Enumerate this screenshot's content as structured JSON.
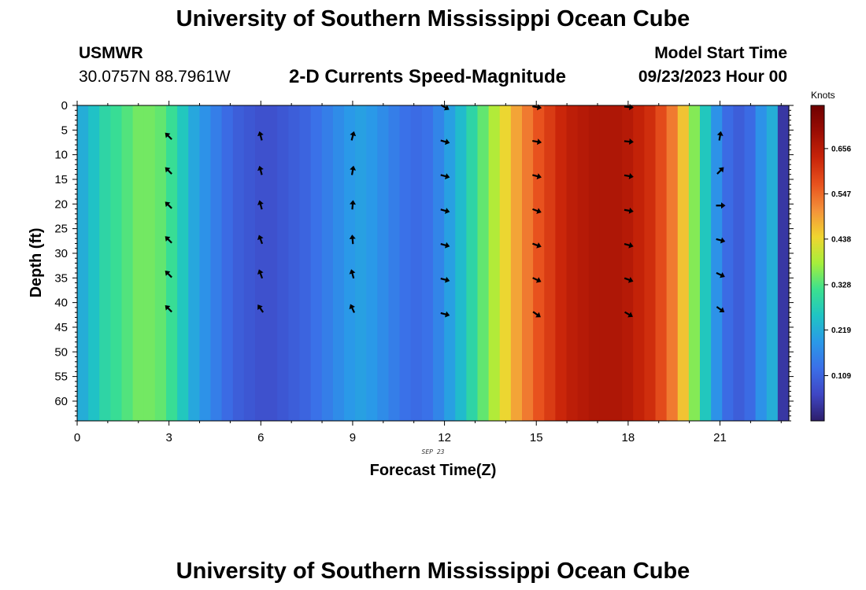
{
  "header": {
    "title": "University of Southern Mississippi Ocean Cube",
    "station": "USMWR",
    "coords": "30.0757N  88.7961W",
    "subtitle": "2-D Currents Speed-Magnitude",
    "model_start_label": "Model Start Time",
    "model_start_value": "09/23/2023 Hour 00"
  },
  "footer": {
    "title": "University of Southern Mississippi Ocean Cube"
  },
  "colors": {
    "speed_scale": [
      "#2d1e6b",
      "#3f46c4",
      "#3b6fe8",
      "#2a99e8",
      "#1fc4c4",
      "#3be08f",
      "#a6ef3b",
      "#f0d530",
      "#f4923a",
      "#e8521e",
      "#c82409",
      "#9b0d04",
      "#6e0000"
    ],
    "arrow": "#000000"
  },
  "chart_data": {
    "type": "heatmap",
    "title": "2-D Currents Speed-Magnitude",
    "xlabel": "Forecast Time(Z)",
    "ylabel": "Depth (ft)",
    "date_label": "SEP 23",
    "xlim": [
      0,
      23.25
    ],
    "ylim": [
      0,
      64
    ],
    "x_ticks": [
      0,
      3,
      6,
      9,
      12,
      15,
      18,
      21
    ],
    "y_ticks": [
      0,
      5,
      10,
      15,
      20,
      25,
      30,
      35,
      40,
      45,
      50,
      55,
      60
    ],
    "colorbar": {
      "label": "Knots",
      "range": [
        0,
        0.76
      ],
      "ticks": [
        0.109,
        0.219,
        0.328,
        0.438,
        0.547,
        0.656
      ]
    },
    "speed_columns_knots": [
      0.22,
      0.25,
      0.29,
      0.31,
      0.33,
      0.35,
      0.35,
      0.34,
      0.31,
      0.26,
      0.21,
      0.18,
      0.15,
      0.12,
      0.1,
      0.09,
      0.08,
      0.08,
      0.09,
      0.1,
      0.11,
      0.13,
      0.15,
      0.17,
      0.19,
      0.2,
      0.19,
      0.17,
      0.15,
      0.13,
      0.12,
      0.13,
      0.16,
      0.2,
      0.24,
      0.29,
      0.34,
      0.39,
      0.44,
      0.49,
      0.53,
      0.57,
      0.6,
      0.63,
      0.65,
      0.66,
      0.67,
      0.67,
      0.67,
      0.66,
      0.64,
      0.62,
      0.58,
      0.53,
      0.46,
      0.36,
      0.26,
      0.18,
      0.12,
      0.1,
      0.12,
      0.18,
      0.22,
      0.04
    ],
    "arrows": [
      {
        "time": 3,
        "depths": [
          6,
          13,
          20,
          27,
          34,
          41
        ],
        "angles_deg": [
          -45,
          -45,
          -45,
          -45,
          -45,
          -45
        ]
      },
      {
        "time": 6,
        "depths": [
          6,
          13,
          20,
          27,
          34,
          41
        ],
        "angles_deg": [
          -15,
          -15,
          -15,
          -20,
          -20,
          -35
        ]
      },
      {
        "time": 9,
        "depths": [
          6,
          13,
          20,
          27,
          34,
          41
        ],
        "angles_deg": [
          15,
          10,
          5,
          -5,
          -15,
          -25
        ]
      },
      {
        "time": 12,
        "depths": [
          0,
          7,
          14,
          21,
          28,
          35,
          42
        ],
        "angles_deg": [
          120,
          105,
          105,
          105,
          105,
          105,
          105
        ]
      },
      {
        "time": 15,
        "depths": [
          0,
          7,
          14,
          21,
          28,
          35,
          42
        ],
        "angles_deg": [
          100,
          100,
          105,
          110,
          110,
          115,
          125
        ]
      },
      {
        "time": 18,
        "depths": [
          0,
          7,
          14,
          21,
          28,
          35,
          42
        ],
        "angles_deg": [
          95,
          95,
          100,
          100,
          105,
          110,
          120
        ]
      },
      {
        "time": 21,
        "depths": [
          6,
          13,
          20,
          27,
          34,
          41
        ],
        "angles_deg": [
          10,
          45,
          90,
          105,
          115,
          125
        ]
      }
    ]
  }
}
